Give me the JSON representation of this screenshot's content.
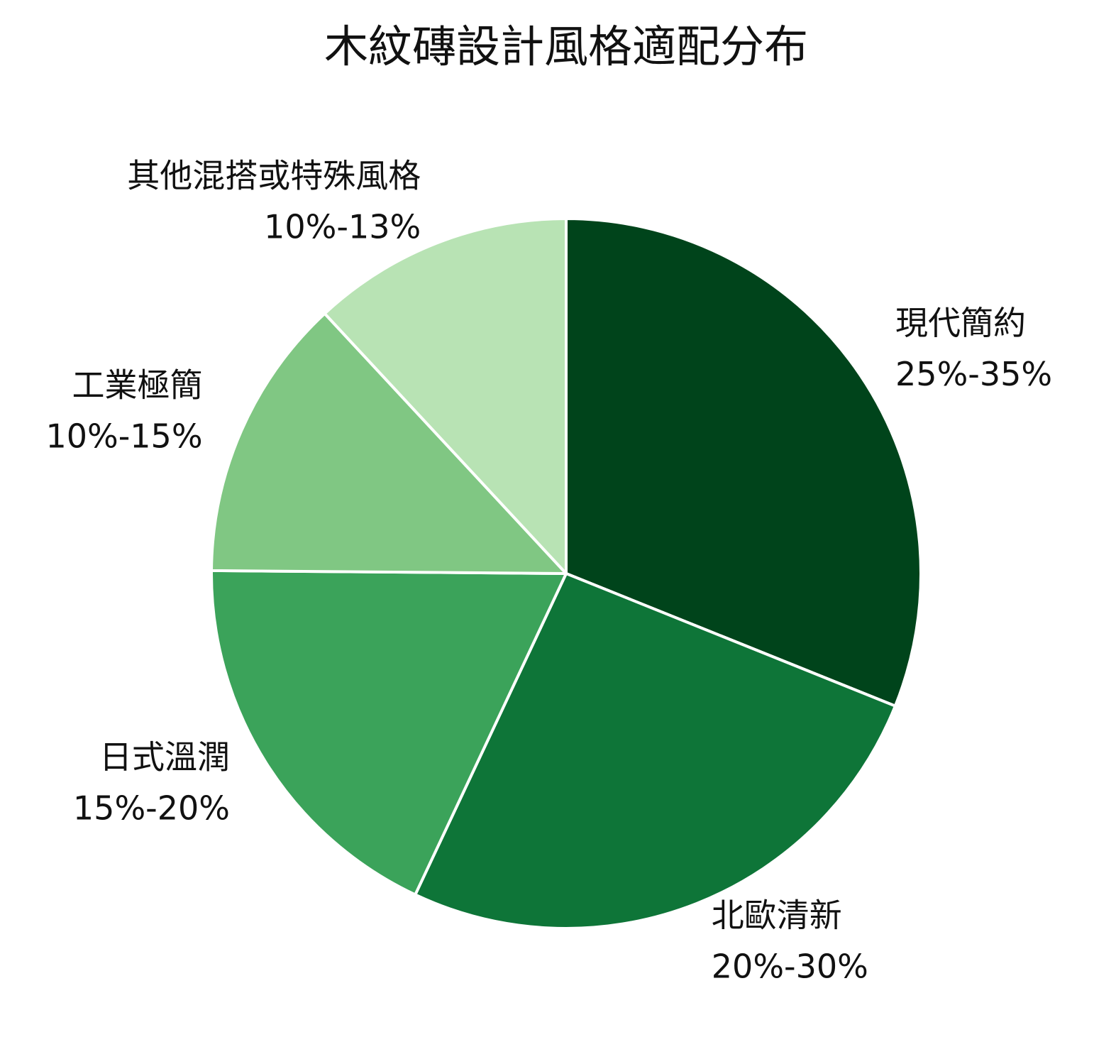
{
  "chart_data": {
    "type": "pie",
    "title": "木紋磚設計風格適配分布",
    "categories": [
      "現代簡約",
      "北歐清新",
      "日式溫潤",
      "工業極簡",
      "其他混搭或特殊風格"
    ],
    "values": [
      30,
      25,
      17.5,
      12.5,
      11.5
    ],
    "value_labels": [
      "25%-35%",
      "20%-30%",
      "15%-20%",
      "10%-15%",
      "10%-13%"
    ],
    "colors": [
      "#00441b",
      "#0e7538",
      "#3ba35a",
      "#80c783",
      "#b8e3b4"
    ]
  }
}
